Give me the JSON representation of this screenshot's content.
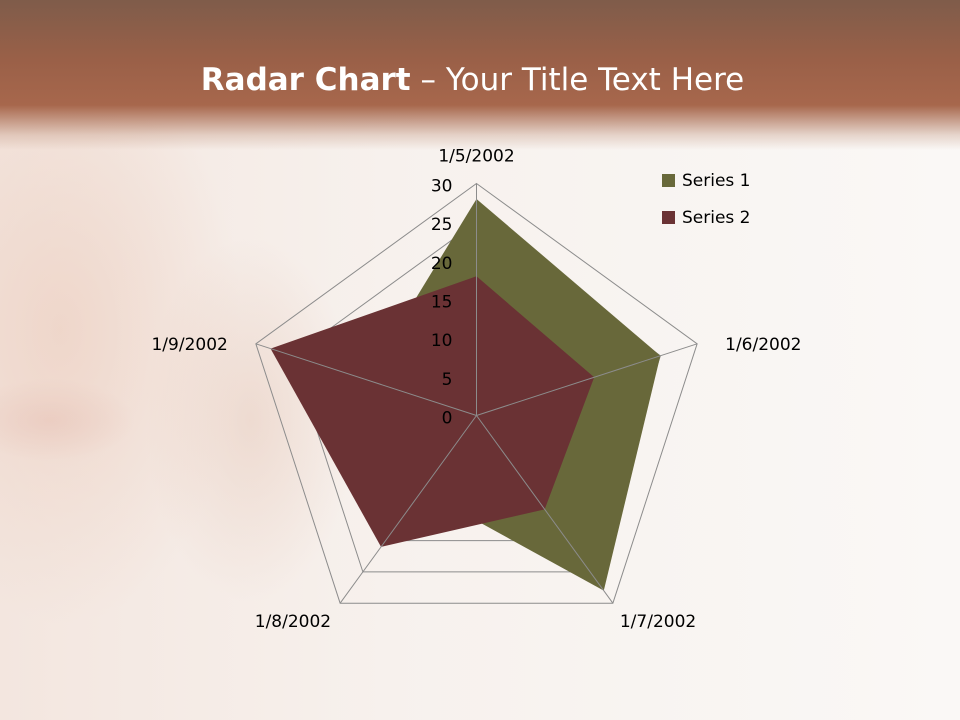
{
  "slide": {
    "title_bold": "Radar Chart",
    "title_rest": " – Your Title Text Here"
  },
  "chart_data": {
    "type": "radar",
    "categories": [
      "1/5/2002",
      "1/6/2002",
      "1/7/2002",
      "1/8/2002",
      "1/9/2002"
    ],
    "series": [
      {
        "name": "Series 1",
        "values": [
          28,
          25,
          28,
          12,
          15
        ],
        "color": "#68683a"
      },
      {
        "name": "Series 2",
        "values": [
          18,
          16,
          15,
          21,
          28
        ],
        "color": "#6a3234"
      }
    ],
    "rlim": [
      0,
      30
    ],
    "r_ticks": [
      "0",
      "5",
      "10",
      "15",
      "20",
      "25",
      "30"
    ],
    "grid": true,
    "legend_position": "top-right"
  }
}
